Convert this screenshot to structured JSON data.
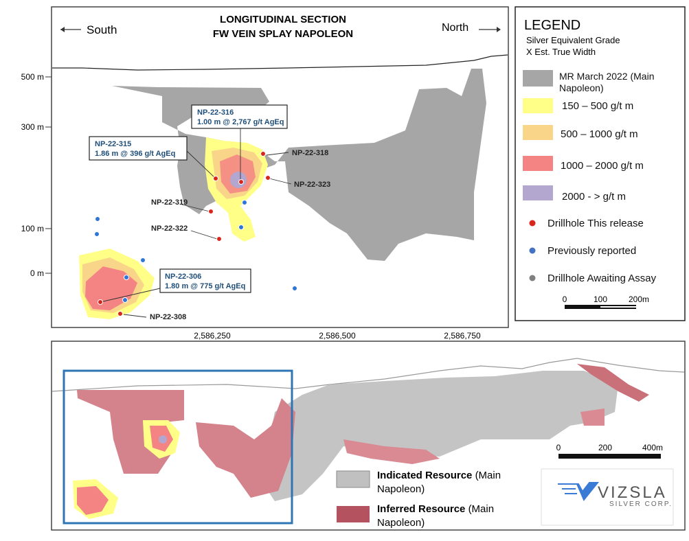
{
  "section": {
    "title_lines": [
      "LONGITUDINAL SECTION",
      "FW VEIN SPLAY NAPOLEON"
    ],
    "south": "South",
    "north": "North",
    "elevations": [
      "500 m",
      "300 m",
      "100 m",
      "0 m"
    ],
    "eastings": [
      "2,586,250",
      "2,586,500",
      "2,586,750"
    ],
    "callouts": [
      {
        "hole": "NP-22-316",
        "intercept": "1.00 m @ 2,767 g/t AgEq"
      },
      {
        "hole": "NP-22-315",
        "intercept": "1.86 m @ 396 g/t AgEq"
      },
      {
        "hole": "NP-22-306",
        "intercept": "1.80 m @ 775 g/t AgEq"
      }
    ],
    "hole_labels": [
      "NP-22-318",
      "NP-22-323",
      "NP-22-319",
      "NP-22-322",
      "NP-22-308"
    ]
  },
  "legend": {
    "title": "LEGEND",
    "subtitle_lines": [
      "Silver Equivalent Grade",
      "X Est. True Width"
    ],
    "grades": [
      "MR March 2022 (Main Napoleon)",
      "150 – 500 g/t m",
      "500 – 1000 g/t m",
      "1000 – 2000 g/t m",
      "2000 - > g/t m"
    ],
    "drillholes": [
      "Drillhole This release",
      "Previously reported",
      "Drillhole Awaiting Assay"
    ],
    "scale": [
      "0",
      "100",
      "200m"
    ]
  },
  "long_section": {
    "resources": [
      {
        "name": "Indicated Resource",
        "note": "(Main Napoleon)"
      },
      {
        "name": "Inferred Resource",
        "note": "(Main Napoleon)"
      }
    ],
    "scale": [
      "0",
      "200",
      "400m"
    ],
    "logo": {
      "name": "VIZSLA",
      "tagline": "SILVER CORP."
    }
  }
}
